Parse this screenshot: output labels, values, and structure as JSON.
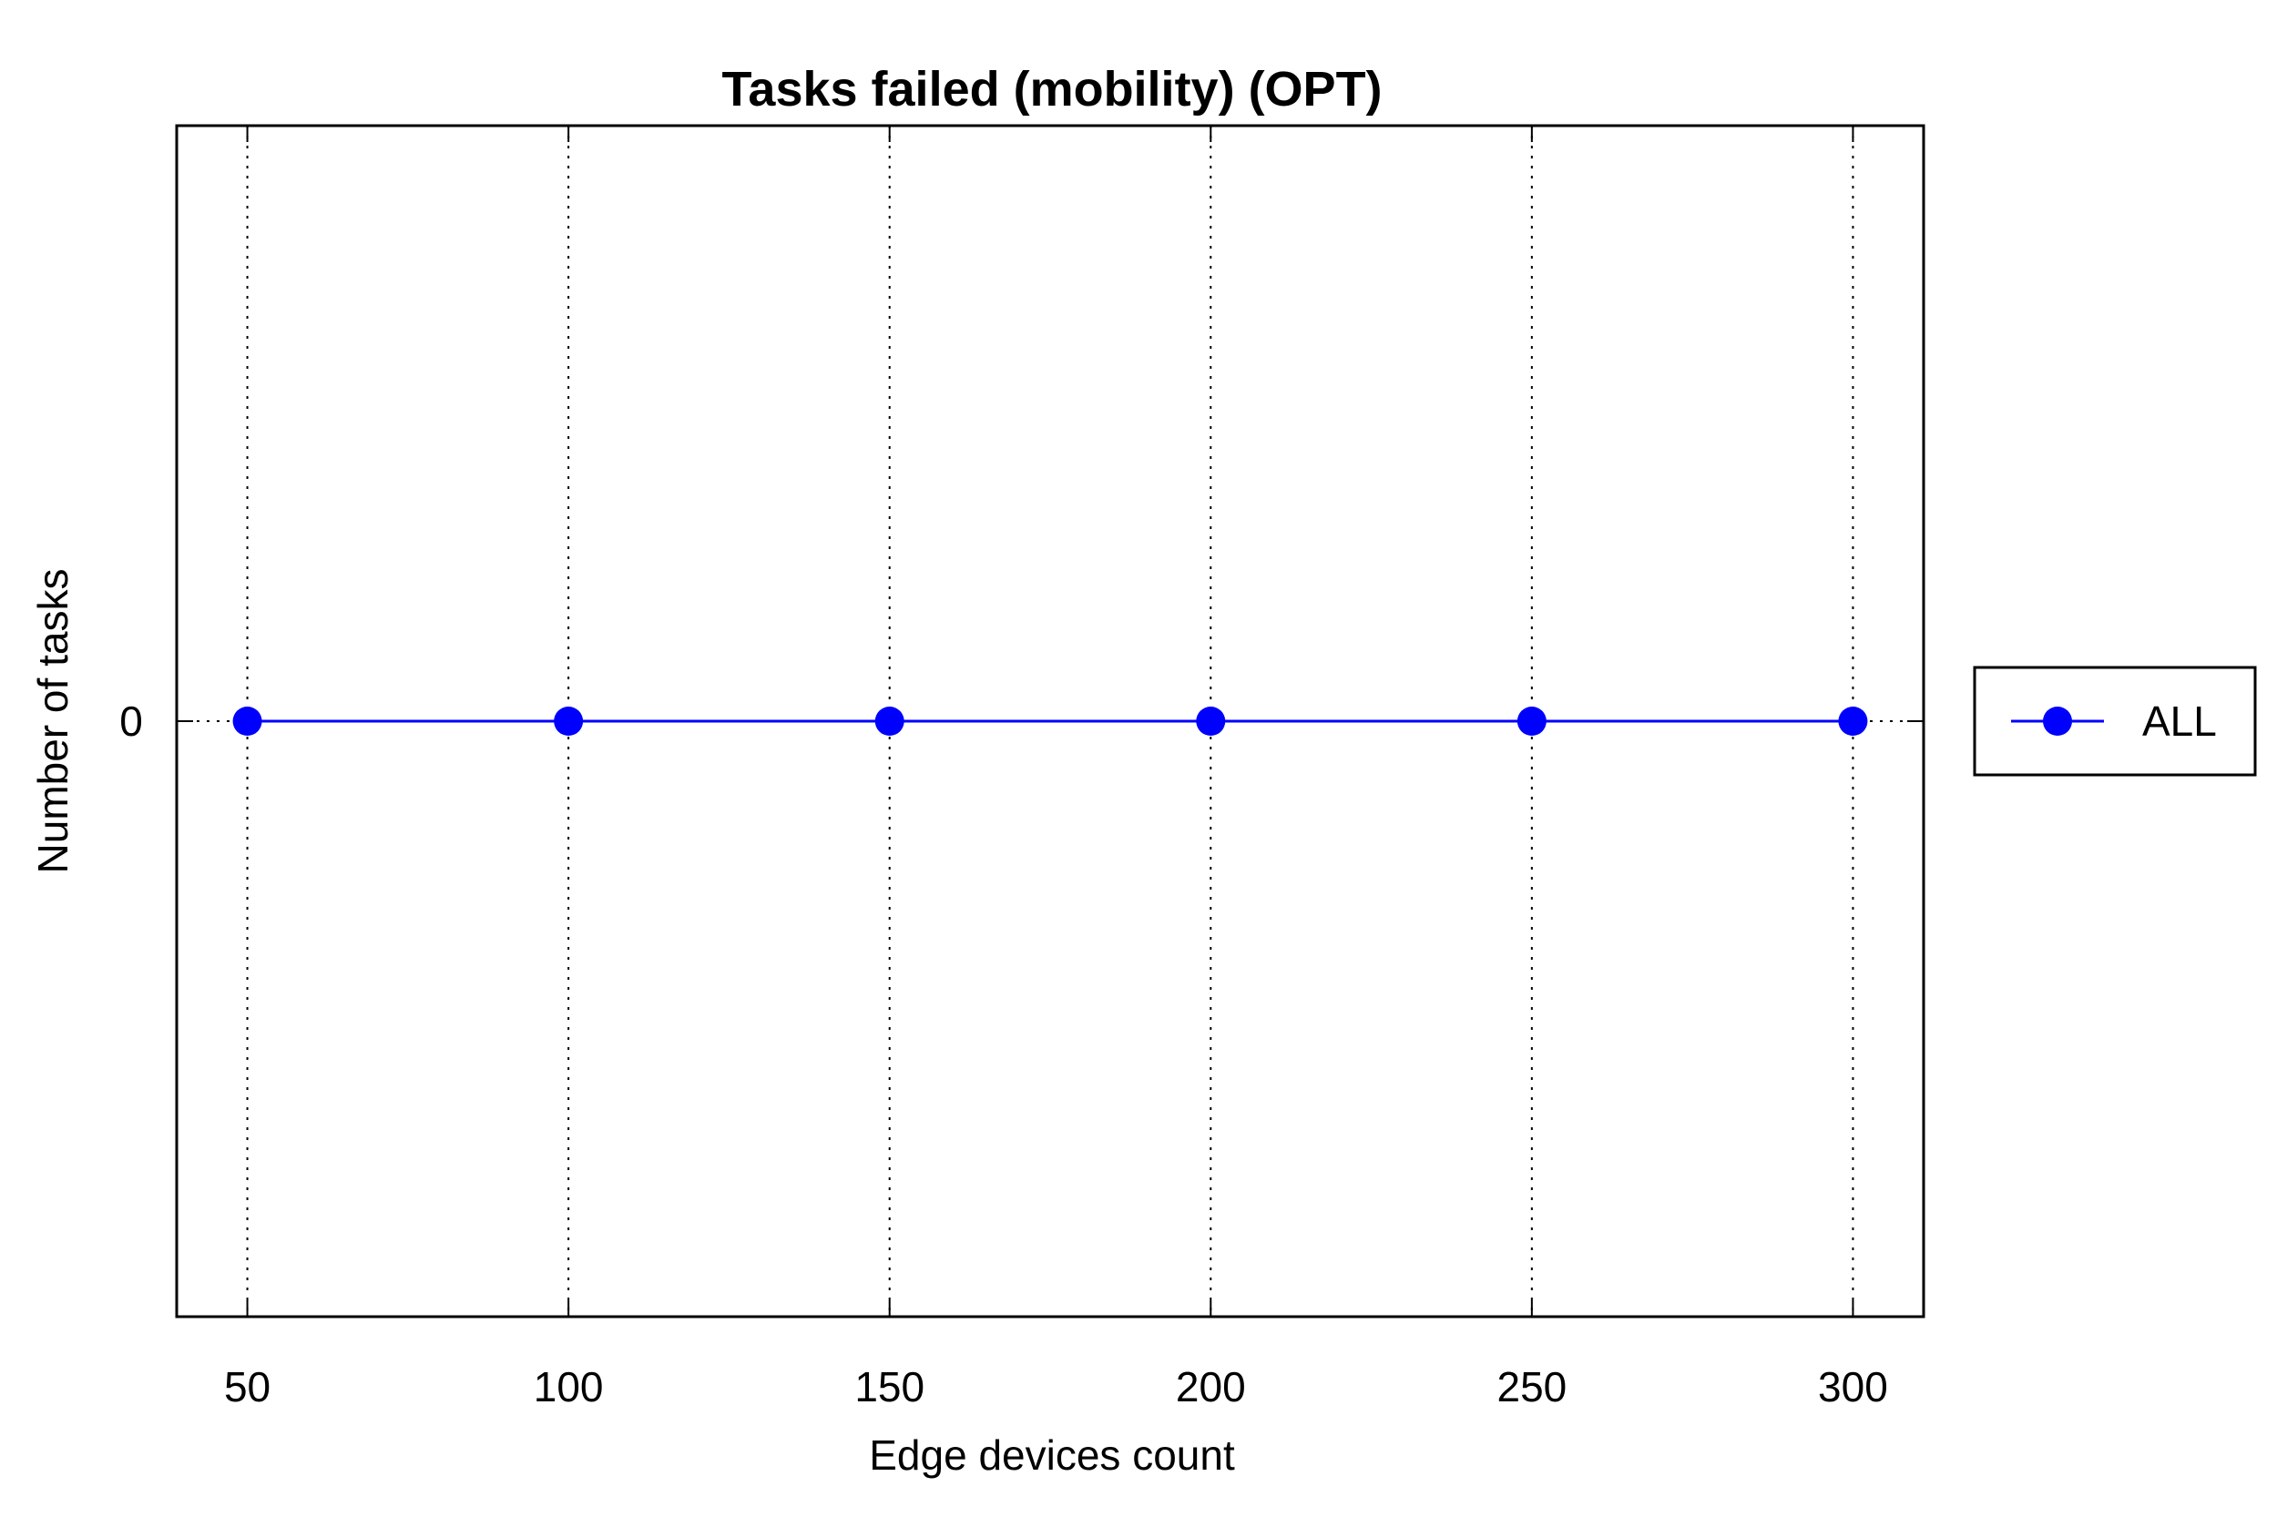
{
  "chart_data": {
    "type": "line",
    "title": "Tasks failed (mobility) (OPT)",
    "xlabel": "Edge devices count",
    "ylabel": "Number of tasks",
    "x": [
      50,
      100,
      150,
      200,
      250,
      300
    ],
    "xticks": [
      "50",
      "100",
      "150",
      "200",
      "250",
      "300"
    ],
    "yticks": [
      "0"
    ],
    "xlim": [
      39,
      311
    ],
    "ylim": [
      -1,
      1
    ],
    "grid": "vertical dotted",
    "legend_position": "outside-right",
    "series": [
      {
        "name": "ALL",
        "values": [
          0,
          0,
          0,
          0,
          0,
          0
        ],
        "color": "#0000ff",
        "marker": "circle"
      }
    ]
  }
}
